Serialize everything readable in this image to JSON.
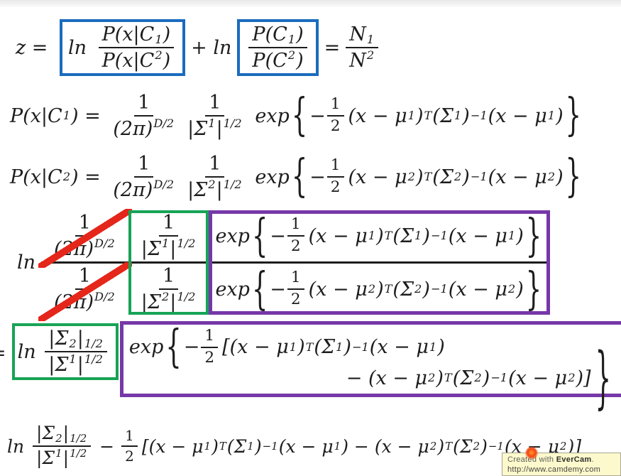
{
  "colors": {
    "blue": "#1a6cbd",
    "green": "#17a356",
    "purple": "#7638a8",
    "red": "#e5261a",
    "ink": "#1d1d1d",
    "tooltip_bg": "#fcf9cd",
    "tooltip_border": "#a9a694"
  },
  "watermark": {
    "prefix": "Created with ",
    "brand": "EverCam",
    "suffix": ".",
    "url": "http://www.camdemy.com"
  },
  "math": {
    "l1": {
      "lead": [
        [
          "t",
          "z = "
        ]
      ],
      "ln1": [
        [
          "t",
          "ln "
        ]
      ],
      "frac1": [
        [
          "f",
          [
            [
              "t",
              "P(x|C"
            ],
            [
              "sub",
              "1"
            ],
            [
              "t",
              ")"
            ]
          ],
          [
            [
              "t",
              "P(x|C"
            ],
            [
              "sub",
              "2"
            ],
            [
              "t",
              ")"
            ]
          ]
        ]
      ],
      "plus": [
        [
          "t",
          "+ ln"
        ]
      ],
      "frac2": [
        [
          "f",
          [
            [
              "t",
              "P(C"
            ],
            [
              "sub",
              "1"
            ],
            [
              "t",
              ")"
            ]
          ],
          [
            [
              "t",
              "P(C"
            ],
            [
              "sub",
              "2"
            ],
            [
              "t",
              ")"
            ]
          ]
        ]
      ],
      "eq": [
        [
          "t",
          "="
        ]
      ],
      "frac3": [
        [
          "f",
          [
            [
              "t",
              "N"
            ],
            [
              "sub",
              "1"
            ]
          ],
          [
            [
              "t",
              "N"
            ],
            [
              "sub",
              "2"
            ]
          ]
        ]
      ]
    },
    "l2": [
      [
        "t",
        "P(x|C"
      ],
      [
        "sub",
        "1"
      ],
      [
        "t",
        ") = "
      ],
      [
        "f",
        [
          [
            "n",
            "1"
          ]
        ],
        [
          [
            "t",
            "(2π)"
          ],
          [
            "supi",
            "D/2"
          ]
        ]
      ],
      [
        "f",
        [
          [
            "n",
            "1"
          ]
        ],
        [
          [
            "t",
            "|Σ"
          ],
          [
            "sup",
            "1"
          ],
          [
            "t",
            "|"
          ],
          [
            "sup",
            "1/2"
          ]
        ]
      ],
      [
        "t",
        " exp"
      ],
      [
        "b",
        "{"
      ],
      [
        "t",
        "−"
      ],
      [
        "f",
        [
          [
            "n",
            "1"
          ]
        ],
        [
          [
            "n",
            "2"
          ]
        ],
        "half"
      ],
      [
        "t",
        "(x − μ"
      ],
      [
        "sup",
        "1"
      ],
      [
        "t",
        ")"
      ],
      [
        "supi",
        "T"
      ],
      [
        "t",
        "(Σ"
      ],
      [
        "sup",
        "1"
      ],
      [
        "t",
        ")"
      ],
      [
        "sup",
        "−1"
      ],
      [
        "t",
        "(x − μ"
      ],
      [
        "sup",
        "1"
      ],
      [
        "t",
        ")"
      ],
      [
        "b",
        "}"
      ]
    ],
    "l3": [
      [
        "t",
        "P(x|C"
      ],
      [
        "sub",
        "2"
      ],
      [
        "t",
        ") = "
      ],
      [
        "f",
        [
          [
            "n",
            "1"
          ]
        ],
        [
          [
            "t",
            "(2π)"
          ],
          [
            "supi",
            "D/2"
          ]
        ]
      ],
      [
        "f",
        [
          [
            "n",
            "1"
          ]
        ],
        [
          [
            "t",
            "|Σ"
          ],
          [
            "sup",
            "2"
          ],
          [
            "t",
            "|"
          ],
          [
            "sup",
            "1/2"
          ]
        ]
      ],
      [
        "t",
        " exp"
      ],
      [
        "b",
        "{"
      ],
      [
        "t",
        "−"
      ],
      [
        "f",
        [
          [
            "n",
            "1"
          ]
        ],
        [
          [
            "n",
            "2"
          ]
        ],
        "half"
      ],
      [
        "t",
        "(x − μ"
      ],
      [
        "sup",
        "2"
      ],
      [
        "t",
        ")"
      ],
      [
        "supi",
        "T"
      ],
      [
        "t",
        "(Σ"
      ],
      [
        "sup",
        "2"
      ],
      [
        "t",
        ")"
      ],
      [
        "sup",
        "−1"
      ],
      [
        "t",
        "(x − μ"
      ],
      [
        "sup",
        "2"
      ],
      [
        "t",
        ")"
      ],
      [
        "b",
        "}"
      ]
    ],
    "l4": {
      "ln": [
        [
          "t",
          "ln"
        ]
      ],
      "c11": [
        [
          "f",
          [
            [
              "n",
              "1"
            ]
          ],
          [
            [
              "t",
              "(2π)"
            ],
            [
              "supi",
              "D/2"
            ]
          ]
        ]
      ],
      "c12": [
        [
          "f",
          [
            [
              "n",
              "1"
            ]
          ],
          [
            [
              "t",
              "|Σ"
            ],
            [
              "sup",
              "1"
            ],
            [
              "t",
              "|"
            ],
            [
              "sup",
              "1/2"
            ]
          ]
        ]
      ],
      "c13": [
        [
          "t",
          "exp"
        ],
        [
          "b",
          "{"
        ],
        [
          "t",
          "−"
        ],
        [
          "f",
          [
            [
              "n",
              "1"
            ]
          ],
          [
            [
              "n",
              "2"
            ]
          ],
          "half"
        ],
        [
          "t",
          "(x − μ"
        ],
        [
          "sup",
          "1"
        ],
        [
          "t",
          ")"
        ],
        [
          "supi",
          "T"
        ],
        [
          "t",
          "(Σ"
        ],
        [
          "sup",
          "1"
        ],
        [
          "t",
          ")"
        ],
        [
          "sup",
          "−1"
        ],
        [
          "t",
          "(x − μ"
        ],
        [
          "sup",
          "1"
        ],
        [
          "t",
          ")"
        ],
        [
          "b",
          "}"
        ]
      ],
      "c21": [
        [
          "f",
          [
            [
              "n",
              "1"
            ]
          ],
          [
            [
              "t",
              "(2π)"
            ],
            [
              "supi",
              "D/2"
            ]
          ]
        ]
      ],
      "c22": [
        [
          "f",
          [
            [
              "n",
              "1"
            ]
          ],
          [
            [
              "t",
              "|Σ"
            ],
            [
              "sup",
              "2"
            ],
            [
              "t",
              "|"
            ],
            [
              "sup",
              "1/2"
            ]
          ]
        ]
      ],
      "c23": [
        [
          "t",
          "exp"
        ],
        [
          "b",
          "{"
        ],
        [
          "t",
          "−"
        ],
        [
          "f",
          [
            [
              "n",
              "1"
            ]
          ],
          [
            [
              "n",
              "2"
            ]
          ],
          "half"
        ],
        [
          "t",
          "(x − μ"
        ],
        [
          "sup",
          "2"
        ],
        [
          "t",
          ")"
        ],
        [
          "supi",
          "T"
        ],
        [
          "t",
          "(Σ"
        ],
        [
          "sup",
          "2"
        ],
        [
          "t",
          ")"
        ],
        [
          "sup",
          "−1"
        ],
        [
          "t",
          "(x − μ"
        ],
        [
          "sup",
          "2"
        ],
        [
          "t",
          ")"
        ],
        [
          "b",
          "}"
        ]
      ]
    },
    "l5": {
      "eq": [
        [
          "t",
          "="
        ]
      ],
      "green": [
        [
          "t",
          "ln "
        ],
        [
          "f",
          [
            [
              "t",
              "|Σ"
            ],
            [
              "sup",
              "2"
            ],
            [
              "t",
              "|"
            ],
            [
              "sup",
              "1/2"
            ]
          ],
          [
            [
              "t",
              "|Σ"
            ],
            [
              "sup",
              "1"
            ],
            [
              "t",
              "|"
            ],
            [
              "sup",
              "1/2"
            ]
          ]
        ]
      ],
      "p1": [
        [
          "t",
          "exp"
        ],
        [
          "b",
          "{"
        ],
        [
          "t",
          "−"
        ],
        [
          "f",
          [
            [
              "n",
              "1"
            ]
          ],
          [
            [
              "n",
              "2"
            ]
          ],
          "half"
        ],
        [
          "t",
          "[(x − μ"
        ],
        [
          "sup",
          "1"
        ],
        [
          "t",
          ")"
        ],
        [
          "supi",
          "T"
        ],
        [
          "t",
          "(Σ"
        ],
        [
          "sup",
          "1"
        ],
        [
          "t",
          ")"
        ],
        [
          "sup",
          "−1"
        ],
        [
          "t",
          "(x − μ"
        ],
        [
          "sup",
          "1"
        ],
        [
          "t",
          ")"
        ]
      ],
      "p2": [
        [
          "t",
          "− (x − μ"
        ],
        [
          "sup",
          "2"
        ],
        [
          "t",
          ")"
        ],
        [
          "supi",
          "T"
        ],
        [
          "t",
          "(Σ"
        ],
        [
          "sup",
          "2"
        ],
        [
          "t",
          ")"
        ],
        [
          "sup",
          "−1"
        ],
        [
          "t",
          "(x − μ"
        ],
        [
          "sup",
          "2"
        ],
        [
          "t",
          ")]"
        ],
        [
          "B",
          "}"
        ]
      ]
    },
    "l6": {
      "eq": [
        [
          "t",
          "="
        ]
      ],
      "body": [
        [
          "t",
          "ln "
        ],
        [
          "f",
          [
            [
              "t",
              "|Σ"
            ],
            [
              "sup",
              "2"
            ],
            [
              "t",
              "|"
            ],
            [
              "sup",
              "1/2"
            ]
          ],
          [
            [
              "t",
              "|Σ"
            ],
            [
              "sup",
              "1"
            ],
            [
              "t",
              "|"
            ],
            [
              "sup",
              "1/2"
            ]
          ]
        ],
        [
          "t",
          " − "
        ],
        [
          "f",
          [
            [
              "n",
              "1"
            ]
          ],
          [
            [
              "n",
              "2"
            ]
          ],
          "half"
        ],
        [
          "t",
          "[(x − μ"
        ],
        [
          "sup",
          "1"
        ],
        [
          "t",
          ")"
        ],
        [
          "supi",
          "T"
        ],
        [
          "t",
          "(Σ"
        ],
        [
          "sup",
          "1"
        ],
        [
          "t",
          ")"
        ],
        [
          "sup",
          "−1"
        ],
        [
          "t",
          "(x − μ"
        ],
        [
          "sup",
          "1"
        ],
        [
          "t",
          ") − (x − μ"
        ],
        [
          "sup",
          "2"
        ],
        [
          "t",
          ")"
        ],
        [
          "supi",
          "T"
        ],
        [
          "t",
          "(Σ"
        ],
        [
          "sup",
          "2"
        ],
        [
          "t",
          ")"
        ],
        [
          "sup",
          "−1"
        ],
        [
          "t",
          "(x − μ"
        ],
        [
          "sup",
          "2"
        ],
        [
          "t",
          ")]"
        ]
      ]
    }
  }
}
